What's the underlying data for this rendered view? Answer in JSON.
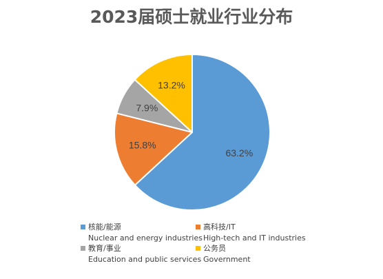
{
  "chart_data": {
    "type": "pie",
    "title": "2023届硕士就业行业分布",
    "slices": [
      {
        "label_cn": "核能/能源",
        "label_en": "Nuclear and energy industries",
        "value": 63.2,
        "value_label": "63.2%",
        "color": "#5B9BD5"
      },
      {
        "label_cn": "高科技/IT",
        "label_en": "High-tech and IT industries",
        "value": 15.8,
        "value_label": "15.8%",
        "color": "#ED7D31"
      },
      {
        "label_cn": "教育/事业",
        "label_en": "Education and public services",
        "value": 7.9,
        "value_label": "7.9%",
        "color": "#A5A5A5"
      },
      {
        "label_cn": "公务员",
        "label_en": "Government",
        "value": 13.2,
        "value_label": "13.2%",
        "color": "#FFC000"
      }
    ],
    "start_angle_deg": 0,
    "direction": "clockwise",
    "legend_position": "bottom"
  }
}
